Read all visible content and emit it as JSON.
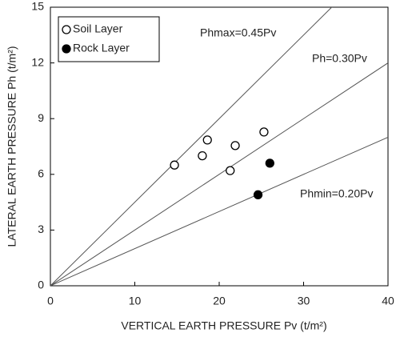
{
  "chart_data": {
    "type": "scatter",
    "x_label": "VERTICAL EARTH PRESSURE Pv (t/m²)",
    "y_label": "LATERAL EARTH PRESSURE Ph (t/m²)",
    "xlim": [
      0,
      40
    ],
    "ylim": [
      0,
      15
    ],
    "xticks": [
      0,
      10,
      20,
      30,
      40
    ],
    "yticks": [
      0,
      3,
      6,
      9,
      12,
      15
    ],
    "legend": "top-left",
    "series": [
      {
        "name": "Soil Layer",
        "color": "#000000",
        "marker": "open",
        "x": [
          14.7,
          18.0,
          18.6,
          21.3,
          21.9,
          25.3
        ],
        "values": [
          6.5,
          7.0,
          7.85,
          6.2,
          7.55,
          8.28
        ]
      },
      {
        "name": "Rock Layer",
        "color": "#000000",
        "marker": "filled",
        "x": [
          24.6,
          26.0
        ],
        "values": [
          4.9,
          6.6
        ]
      }
    ],
    "lines": [
      {
        "label": "Phmax=0.45Pv",
        "slope": 0.45
      },
      {
        "label": "Ph=0.30Pv",
        "slope": 0.3
      },
      {
        "label": "Phmin=0.20Pv",
        "slope": 0.2
      }
    ]
  }
}
